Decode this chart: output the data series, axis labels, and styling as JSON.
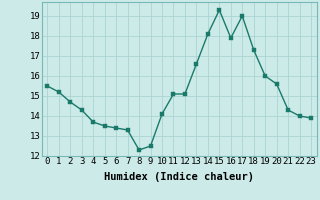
{
  "x": [
    0,
    1,
    2,
    3,
    4,
    5,
    6,
    7,
    8,
    9,
    10,
    11,
    12,
    13,
    14,
    15,
    16,
    17,
    18,
    19,
    20,
    21,
    22,
    23
  ],
  "y": [
    15.5,
    15.2,
    14.7,
    14.3,
    13.7,
    13.5,
    13.4,
    13.3,
    12.3,
    12.5,
    14.1,
    15.1,
    15.1,
    16.6,
    18.1,
    19.3,
    17.9,
    19.0,
    17.3,
    16.0,
    15.6,
    14.3,
    14.0,
    13.9
  ],
  "line_color": "#1a7a6a",
  "marker_color": "#1a7a6a",
  "bg_color": "#cceae8",
  "grid_color": "#aad4d2",
  "xlabel": "Humidex (Indice chaleur)",
  "xlim": [
    -0.5,
    23.5
  ],
  "ylim": [
    12,
    19.7
  ],
  "yticks": [
    12,
    13,
    14,
    15,
    16,
    17,
    18,
    19
  ],
  "xticks": [
    0,
    1,
    2,
    3,
    4,
    5,
    6,
    7,
    8,
    9,
    10,
    11,
    12,
    13,
    14,
    15,
    16,
    17,
    18,
    19,
    20,
    21,
    22,
    23
  ],
  "xtick_labels": [
    "0",
    "1",
    "2",
    "3",
    "4",
    "5",
    "6",
    "7",
    "8",
    "9",
    "10",
    "11",
    "12",
    "13",
    "14",
    "15",
    "16",
    "17",
    "18",
    "19",
    "20",
    "21",
    "22",
    "23"
  ],
  "marker_size": 2.5,
  "line_width": 1.0,
  "xlabel_fontsize": 7.5,
  "tick_fontsize": 6.5
}
